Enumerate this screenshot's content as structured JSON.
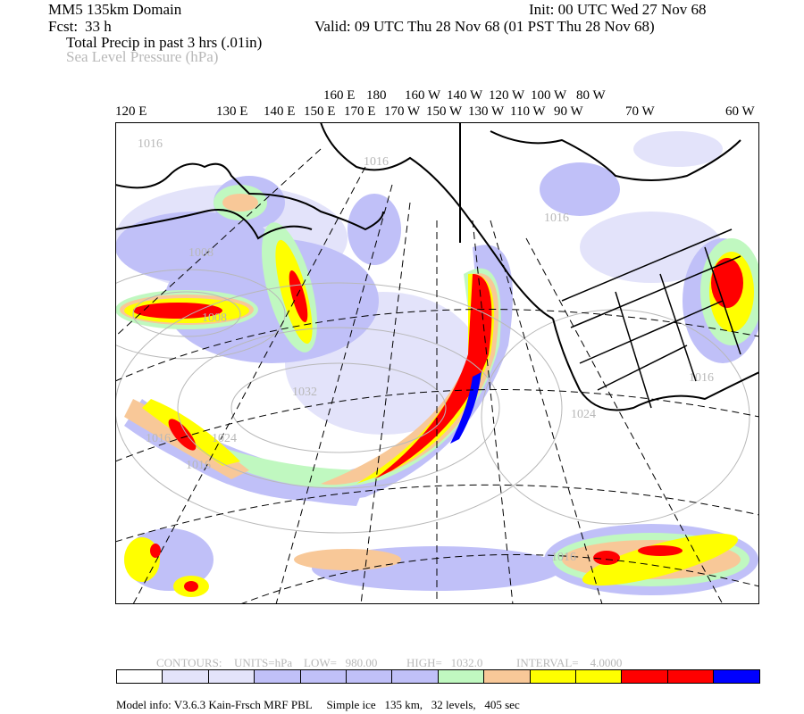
{
  "header": {
    "domain": "MM5 135km Domain",
    "init": "Init: 00 UTC Wed 27 Nov 68",
    "fcst_label": "Fcst:",
    "fcst_value": "33 h",
    "valid": "Valid: 09 UTC Thu 28 Nov 68 (01 PST Thu 28 Nov 68)",
    "field1": "Total Precip in past 3 hrs (.01in)",
    "field2": "Sea Level Pressure (hPa)"
  },
  "longitude_labels": [
    "120 E",
    "130 E",
    "140 E",
    "150 E",
    "160 E",
    "170 E",
    "180",
    "170 W",
    "160 W",
    "150 W",
    "140 W",
    "130 W",
    "120 W",
    "110 W",
    "100 W",
    "90 W",
    "80 W",
    "70 W",
    "60 W"
  ],
  "isobar_labels": [
    "1016",
    "1016",
    "1008",
    "1008",
    "1032",
    "1016",
    "1024",
    "1016",
    "1016",
    "1024",
    "1016",
    "1016"
  ],
  "contour_info": {
    "contours": "CONTOURS:",
    "units": "UNITS=hPa",
    "low": "LOW=   980.00",
    "high": "HIGH=   1032.0",
    "interval": "INTERVAL=    4.0000"
  },
  "colorbar": [
    "#ffffff",
    "#e3e3fa",
    "#e3e3fa",
    "#c0c0f8",
    "#c0c0f8",
    "#c0c0f8",
    "#c0c0f8",
    "#c0f8c0",
    "#f8c898",
    "#ffff00",
    "#ffff00",
    "#ff0000",
    "#ff0000",
    "#0000ff",
    "#0000ff"
  ],
  "footer": {
    "model_info": "Model info: V3.6.3 Kain-Frsch MRF PBL     Simple ice   135 km,   32 levels,   405 sec"
  }
}
